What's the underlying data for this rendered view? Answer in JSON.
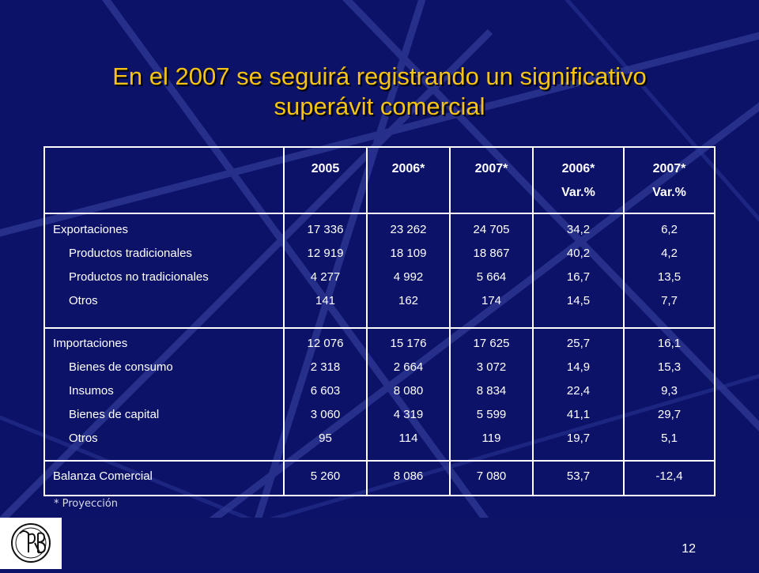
{
  "slide": {
    "title_line1": "En el 2007 se seguirá registrando un significativo",
    "title_line2": "superávit comercial",
    "footnote": "* Proyección",
    "page_number": "12"
  },
  "colors": {
    "background": "#0c1268",
    "title": "#f5c316",
    "table_text": "#ffffff"
  },
  "table": {
    "headers": [
      {
        "line1": "",
        "line2": ""
      },
      {
        "line1": "2005",
        "line2": ""
      },
      {
        "line1": "2006*",
        "line2": ""
      },
      {
        "line1": "2007*",
        "line2": ""
      },
      {
        "line1": "2006*",
        "line2": "Var.%"
      },
      {
        "line1": "2007*",
        "line2": "Var.%"
      }
    ],
    "exportaciones": {
      "labels": [
        "Exportaciones",
        "Productos  tradicionales",
        "Productos no tradicionales",
        "Otros"
      ],
      "y2005": [
        "17 336",
        "12 919",
        "4 277",
        "141"
      ],
      "y2006": [
        "23 262",
        "18 109",
        "4 992",
        "162"
      ],
      "y2007": [
        "24 705",
        "18 867",
        "5 664",
        "174"
      ],
      "var2006": [
        "34,2",
        "40,2",
        "16,7",
        "14,5"
      ],
      "var2007": [
        "6,2",
        "4,2",
        "13,5",
        "7,7"
      ]
    },
    "importaciones": {
      "labels": [
        "Importaciones",
        "Bienes de consumo",
        "Insumos",
        "Bienes de capital",
        "Otros"
      ],
      "y2005": [
        "12 076",
        "2 318",
        "6 603",
        "3 060",
        "95"
      ],
      "y2006": [
        "15 176",
        "2 664",
        "8 080",
        "4 319",
        "114"
      ],
      "y2007": [
        "17 625",
        "3 072",
        "8 834",
        "5 599",
        "119"
      ],
      "var2006": [
        "25,7",
        "14,9",
        "22,4",
        "41,1",
        "19,7"
      ],
      "var2007": [
        "16,1",
        "15,3",
        "9,3",
        "29,7",
        "5,1"
      ]
    },
    "balanza": {
      "label": "Balanza Comercial",
      "y2005": "5 260",
      "y2006": "8 086",
      "y2007": "7 080",
      "var2006": "53,7",
      "var2007": "-12,4"
    }
  }
}
